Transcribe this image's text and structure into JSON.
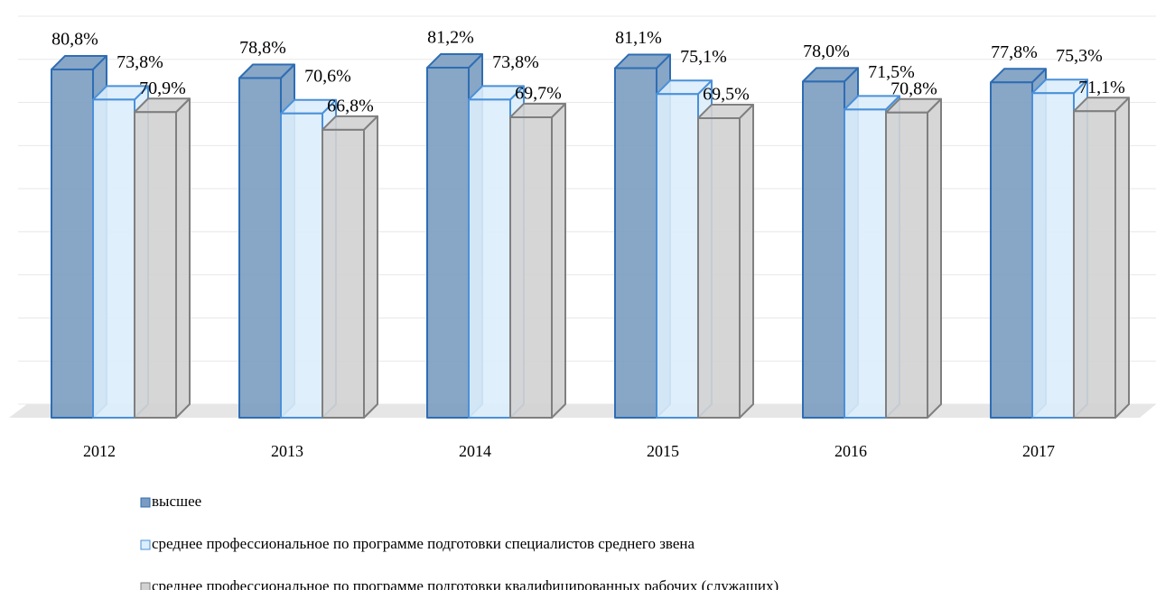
{
  "chart_data": {
    "type": "bar3d",
    "categories": [
      "2012",
      "2013",
      "2014",
      "2015",
      "2016",
      "2017"
    ],
    "series": [
      {
        "name": "высшее",
        "color": "#7b9cc0",
        "edge": "#2e6db4",
        "values": [
          80.8,
          78.8,
          81.2,
          81.1,
          78.0,
          77.8
        ],
        "value_labels": [
          "80,8%",
          "78,8%",
          "81,2%",
          "81,1%",
          "78,0%",
          "77,8%"
        ]
      },
      {
        "name": "среднее профессиональное по программе подготовки специалистов среднего звена",
        "color": "#dcedfb",
        "edge": "#4a90d9",
        "values": [
          73.8,
          70.6,
          73.8,
          75.1,
          71.5,
          75.3
        ],
        "value_labels": [
          "73,8%",
          "70,6%",
          "73,8%",
          "75,1%",
          "71,5%",
          "75,3%"
        ]
      },
      {
        "name": "среднее профессиональное по программе подготовки квалифицированных рабочих (служащих)",
        "color": "#d2d2d2",
        "edge": "#7f7f7f",
        "values": [
          70.9,
          66.8,
          69.7,
          69.5,
          70.8,
          71.1
        ],
        "value_labels": [
          "70,9%",
          "66,8%",
          "69,7%",
          "69,5%",
          "70,8%",
          "71,1%"
        ]
      }
    ],
    "ylim": [
      0,
      90
    ],
    "yticks": [
      0,
      10,
      20,
      30,
      40,
      50,
      60,
      70,
      80,
      90
    ],
    "grid": true
  }
}
